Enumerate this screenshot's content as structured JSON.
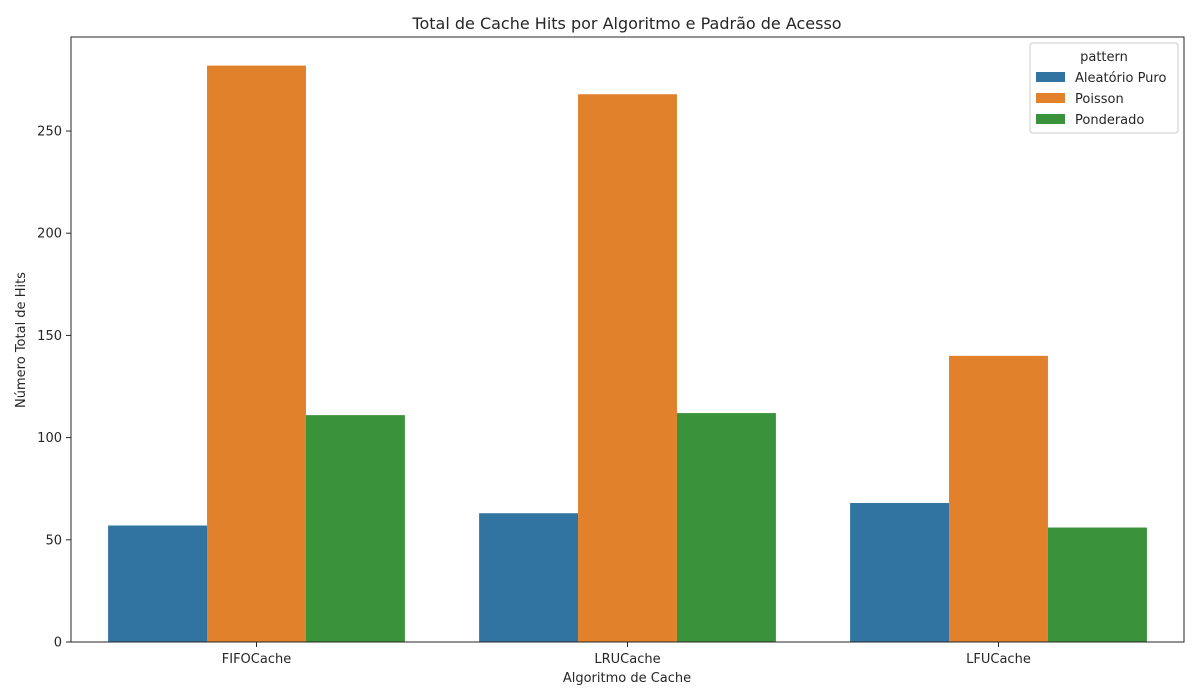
{
  "chart_data": {
    "type": "bar",
    "title": "Total de Cache Hits por Algoritmo e Padrão de Acesso",
    "xlabel": "Algoritmo de Cache",
    "ylabel": "Número Total de Hits",
    "categories": [
      "FIFOCache",
      "LRUCache",
      "LFUCache"
    ],
    "ylim": [
      0,
      296
    ],
    "yticks": [
      0,
      50,
      100,
      150,
      200,
      250
    ],
    "grid": false,
    "legend": {
      "title": "pattern",
      "placement": "top-right"
    },
    "series": [
      {
        "name": "Aleatório Puro",
        "color": "#3274a1",
        "values": [
          57,
          63,
          68
        ]
      },
      {
        "name": "Poisson",
        "color": "#e1812c",
        "values": [
          282,
          268,
          140
        ]
      },
      {
        "name": "Ponderado",
        "color": "#3a923a",
        "values": [
          111,
          112,
          56
        ]
      }
    ]
  }
}
